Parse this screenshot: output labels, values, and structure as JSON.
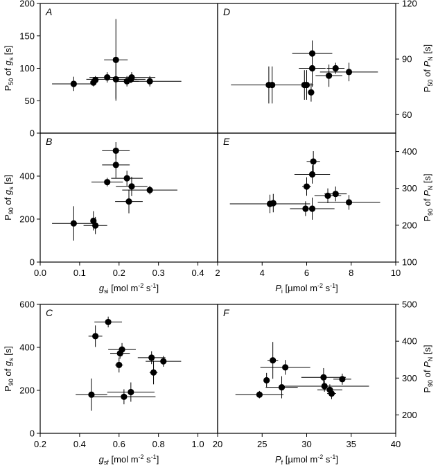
{
  "chart_data": [
    {
      "id": "A",
      "type": "scatter",
      "panel_label": "A",
      "ylabel": "P50 of gs [s]",
      "ylabel_parts": [
        "P",
        "50",
        " of ",
        "g",
        "s",
        " [s]"
      ],
      "xlim": [
        0,
        0.45
      ],
      "ylim": [
        0,
        200
      ],
      "ytick_labels": [
        "0",
        "50",
        "100",
        "150",
        "200"
      ],
      "yticks": [
        0,
        50,
        100,
        150,
        200
      ],
      "yaxis_side": "left",
      "points": [
        {
          "x": 0.085,
          "y": 76,
          "xerr": 0.055,
          "yerr": 11
        },
        {
          "x": 0.135,
          "y": 78,
          "xerr": 0.005,
          "yerr": 6
        },
        {
          "x": 0.14,
          "y": 82,
          "xerr": 0.005,
          "yerr": 6
        },
        {
          "x": 0.17,
          "y": 86,
          "xerr": 0.045,
          "yerr": 8
        },
        {
          "x": 0.192,
          "y": 113,
          "xerr": 0.03,
          "yerr": 63
        },
        {
          "x": 0.192,
          "y": 83,
          "xerr": 0.075,
          "yerr": 30
        },
        {
          "x": 0.22,
          "y": 80,
          "xerr": 0.03,
          "yerr": 8
        },
        {
          "x": 0.23,
          "y": 83,
          "xerr": 0.015,
          "yerr": 6
        },
        {
          "x": 0.232,
          "y": 86,
          "xerr": 0.06,
          "yerr": 8
        },
        {
          "x": 0.278,
          "y": 80,
          "xerr": 0.08,
          "yerr": 8
        }
      ]
    },
    {
      "id": "D",
      "type": "scatter",
      "panel_label": "D",
      "ylabel": "P50 of PN [s]",
      "ylabel_parts": [
        "P",
        "50",
        " of ",
        "P",
        "N",
        " [s]"
      ],
      "xlim": [
        2,
        10
      ],
      "ylim": [
        50,
        120
      ],
      "ytick_labels": [
        "60",
        "90",
        "120"
      ],
      "yticks": [
        60,
        90,
        120
      ],
      "yaxis_side": "right",
      "points": [
        {
          "x": 4.3,
          "y": 76,
          "xerr": 1.7,
          "yerr": 10
        },
        {
          "x": 4.45,
          "y": 76,
          "xerr": 0.1,
          "yerr": 10
        },
        {
          "x": 5.9,
          "y": 76,
          "xerr": 0.3,
          "yerr": 8
        },
        {
          "x": 6.0,
          "y": 76,
          "xerr": 0.3,
          "yerr": 8
        },
        {
          "x": 6.2,
          "y": 72,
          "xerr": 0.05,
          "yerr": 5
        },
        {
          "x": 6.25,
          "y": 93,
          "xerr": 0.9,
          "yerr": 7
        },
        {
          "x": 6.25,
          "y": 85,
          "xerr": 0.6,
          "yerr": 10
        },
        {
          "x": 7.0,
          "y": 81,
          "xerr": 0.6,
          "yerr": 6
        },
        {
          "x": 7.3,
          "y": 85,
          "xerr": 0.4,
          "yerr": 3
        },
        {
          "x": 7.9,
          "y": 83,
          "xerr": 1.3,
          "yerr": 5
        }
      ]
    },
    {
      "id": "B",
      "type": "scatter",
      "panel_label": "B",
      "ylabel": "P90 of gs [s]",
      "ylabel_parts": [
        "P",
        "90",
        " of ",
        "g",
        "s",
        " [s]"
      ],
      "xlabel": "gsi [mol m-2 s-1]",
      "xlabel_parts": [
        "g",
        "si",
        " [mol m",
        "-2",
        " s",
        "-1",
        "]"
      ],
      "xlim": [
        0,
        0.45
      ],
      "ylim": [
        0,
        600
      ],
      "xticks": [
        0,
        0.1,
        0.2,
        0.3,
        0.4
      ],
      "xtick_labels": [
        "0.0",
        "0.1",
        "0.2",
        "0.3",
        "0.4"
      ],
      "ytick_labels": [
        "0",
        "200",
        "400"
      ],
      "yticks": [
        0,
        200,
        400
      ],
      "yaxis_side": "left",
      "points": [
        {
          "x": 0.085,
          "y": 180,
          "xerr": 0.055,
          "yerr": 80
        },
        {
          "x": 0.135,
          "y": 192,
          "xerr": 0.005,
          "yerr": 45
        },
        {
          "x": 0.14,
          "y": 170,
          "xerr": 0.03,
          "yerr": 40
        },
        {
          "x": 0.17,
          "y": 372,
          "xerr": 0.04,
          "yerr": 20
        },
        {
          "x": 0.192,
          "y": 518,
          "xerr": 0.035,
          "yerr": 40
        },
        {
          "x": 0.192,
          "y": 452,
          "xerr": 0.035,
          "yerr": 60
        },
        {
          "x": 0.22,
          "y": 390,
          "xerr": 0.04,
          "yerr": 35
        },
        {
          "x": 0.225,
          "y": 282,
          "xerr": 0.035,
          "yerr": 55
        },
        {
          "x": 0.232,
          "y": 352,
          "xerr": 0.04,
          "yerr": 45
        },
        {
          "x": 0.278,
          "y": 335,
          "xerr": 0.07,
          "yerr": 20
        }
      ]
    },
    {
      "id": "E",
      "type": "scatter",
      "panel_label": "E",
      "ylabel": "P90 of PN [s]",
      "ylabel_parts": [
        "P",
        "90",
        " of ",
        "P",
        "N",
        " [s]"
      ],
      "xlabel": "Pi [µmol m-2 s-1]",
      "xlabel_parts": [
        "P",
        "i",
        " [µmol m",
        "-2",
        " s",
        "-1",
        "]"
      ],
      "xlim": [
        2,
        10
      ],
      "ylim": [
        100,
        450
      ],
      "xticks": [
        2,
        4,
        6,
        8,
        10
      ],
      "xtick_labels": [
        "2",
        "4",
        "6",
        "8",
        "10"
      ],
      "ytick_labels": [
        "100",
        "200",
        "300",
        "400"
      ],
      "yticks": [
        100,
        200,
        300,
        400
      ],
      "yaxis_side": "right",
      "points": [
        {
          "x": 4.35,
          "y": 258,
          "xerr": 1.8,
          "yerr": 25
        },
        {
          "x": 4.5,
          "y": 260,
          "xerr": 0.1,
          "yerr": 25
        },
        {
          "x": 5.95,
          "y": 245,
          "xerr": 0.3,
          "yerr": 20
        },
        {
          "x": 6.0,
          "y": 305,
          "xerr": 0.2,
          "yerr": 25
        },
        {
          "x": 6.25,
          "y": 245,
          "xerr": 1.0,
          "yerr": 30
        },
        {
          "x": 6.25,
          "y": 338,
          "xerr": 0.8,
          "yerr": 25
        },
        {
          "x": 6.3,
          "y": 373,
          "xerr": 0.3,
          "yerr": 28
        },
        {
          "x": 6.95,
          "y": 280,
          "xerr": 0.6,
          "yerr": 20
        },
        {
          "x": 7.3,
          "y": 285,
          "xerr": 0.5,
          "yerr": 20
        },
        {
          "x": 7.9,
          "y": 262,
          "xerr": 1.4,
          "yerr": 20
        }
      ]
    },
    {
      "id": "C",
      "type": "scatter",
      "panel_label": "C",
      "ylabel": "P90 of gs [s]",
      "ylabel_parts": [
        "P",
        "90",
        " of ",
        "g",
        "s",
        " [s]"
      ],
      "xlabel": "gsf [mol m-2 s-1]",
      "xlabel_parts": [
        "g",
        "sf",
        " [mol m",
        "-2",
        " s",
        "-1",
        "]"
      ],
      "xlim": [
        0.2,
        1.1
      ],
      "ylim": [
        0,
        600
      ],
      "xticks": [
        0.2,
        0.4,
        0.6,
        0.8,
        1.0
      ],
      "xtick_labels": [
        "0.2",
        "0.4",
        "0.6",
        "0.8",
        "1.0"
      ],
      "ytick_labels": [
        "0",
        "200",
        "400",
        "600"
      ],
      "yticks": [
        0,
        200,
        400,
        600
      ],
      "yaxis_side": "left",
      "points": [
        {
          "x": 0.46,
          "y": 180,
          "xerr": 0.08,
          "yerr": 75
        },
        {
          "x": 0.48,
          "y": 452,
          "xerr": 0.035,
          "yerr": 50
        },
        {
          "x": 0.545,
          "y": 518,
          "xerr": 0.07,
          "yerr": 25
        },
        {
          "x": 0.6,
          "y": 318,
          "xerr": 0.02,
          "yerr": 35
        },
        {
          "x": 0.605,
          "y": 372,
          "xerr": 0.05,
          "yerr": 25
        },
        {
          "x": 0.615,
          "y": 390,
          "xerr": 0.07,
          "yerr": 30
        },
        {
          "x": 0.625,
          "y": 170,
          "xerr": 0.16,
          "yerr": 35
        },
        {
          "x": 0.66,
          "y": 192,
          "xerr": 0.12,
          "yerr": 45
        },
        {
          "x": 0.765,
          "y": 352,
          "xerr": 0.07,
          "yerr": 30
        },
        {
          "x": 0.775,
          "y": 283,
          "xerr": 0.02,
          "yerr": 55
        },
        {
          "x": 0.825,
          "y": 335,
          "xerr": 0.09,
          "yerr": 25
        }
      ]
    },
    {
      "id": "F",
      "type": "scatter",
      "panel_label": "F",
      "ylabel": "P90 of PN [s]",
      "ylabel_parts": [
        "P",
        "90",
        " of ",
        "P",
        "N",
        " [s]"
      ],
      "xlabel": "Pf [µmol m-2 s-1]",
      "xlabel_parts": [
        "P",
        "f",
        " [µmol m",
        "-2",
        " s",
        "-1",
        "]"
      ],
      "xlim": [
        20,
        40
      ],
      "ylim": [
        150,
        500
      ],
      "xticks": [
        20,
        25,
        30,
        35,
        40
      ],
      "xtick_labels": [
        "20",
        "25",
        "30",
        "35",
        "40"
      ],
      "ytick_labels": [
        "200",
        "300",
        "400",
        "500"
      ],
      "yticks": [
        200,
        300,
        400,
        500
      ],
      "yaxis_side": "right",
      "points": [
        {
          "x": 24.7,
          "y": 255,
          "xerr": 2.7,
          "yerr": 10
        },
        {
          "x": 25.5,
          "y": 294,
          "xerr": 0.3,
          "yerr": 20
        },
        {
          "x": 26.2,
          "y": 348,
          "xerr": 0.6,
          "yerr": 50
        },
        {
          "x": 27.2,
          "y": 275,
          "xerr": 1.8,
          "yerr": 30
        },
        {
          "x": 27.6,
          "y": 329,
          "xerr": 2.8,
          "yerr": 20
        },
        {
          "x": 31.9,
          "y": 302,
          "xerr": 2.5,
          "yerr": 25
        },
        {
          "x": 32.0,
          "y": 278,
          "xerr": 5.0,
          "yerr": 15
        },
        {
          "x": 32.6,
          "y": 268,
          "xerr": 1.4,
          "yerr": 15
        },
        {
          "x": 32.8,
          "y": 258,
          "xerr": 0.5,
          "yerr": 15
        },
        {
          "x": 34.0,
          "y": 297,
          "xerr": 1.0,
          "yerr": 15
        }
      ]
    }
  ]
}
